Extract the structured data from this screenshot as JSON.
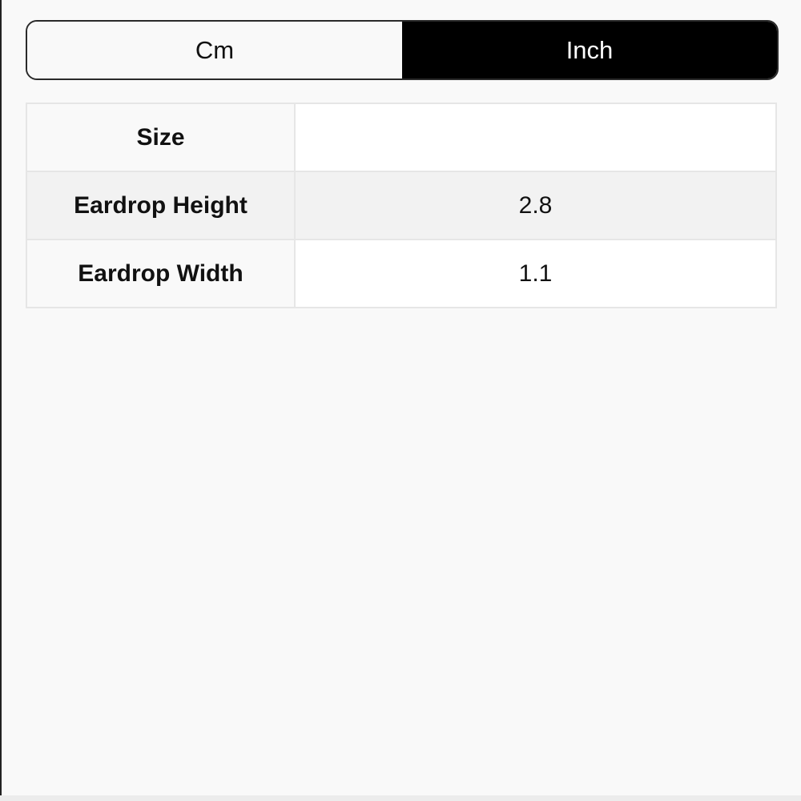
{
  "unit_toggle": {
    "options": [
      "Cm",
      "Inch"
    ],
    "selected": "Inch"
  },
  "size_table": {
    "header": {
      "label": "Size",
      "value": ""
    },
    "rows": [
      {
        "label": "Eardrop Height",
        "value": "2.8"
      },
      {
        "label": "Eardrop Width",
        "value": "1.1"
      }
    ]
  }
}
